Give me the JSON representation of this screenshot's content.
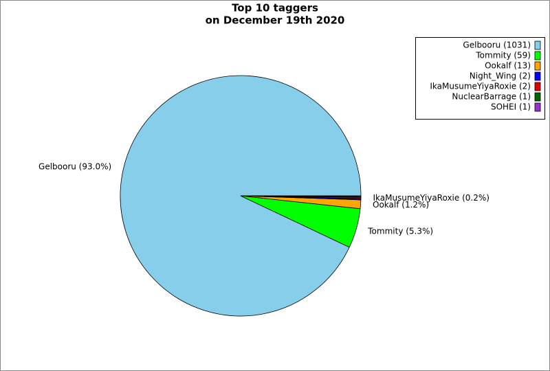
{
  "chart_data": {
    "type": "pie",
    "title": [
      "Top 10 taggers",
      "on December 19th 2020"
    ],
    "categories": [
      "Gelbooru (1031)",
      "Tommity (59)",
      "Ookalf (13)",
      "Night_Wing (2)",
      "IkaMusumeYiyaRoxie (2)",
      "NuclearBarrage (1)",
      "SOHEI (1)"
    ],
    "values": [
      1031,
      59,
      13,
      2,
      2,
      1,
      1
    ],
    "slice_labels": [
      "Gelbooru (93.0%)",
      "Tommity (5.3%)",
      "Ookalf (1.2%)",
      null,
      "IkaMusumeYiyaRoxie (0.2%)",
      null,
      null
    ],
    "colors": [
      "#87ceeb",
      "#00ff00",
      "#ffa500",
      "#0000ff",
      "#e00000",
      "#006400",
      "#9932cc"
    ],
    "legend": "upper right"
  }
}
